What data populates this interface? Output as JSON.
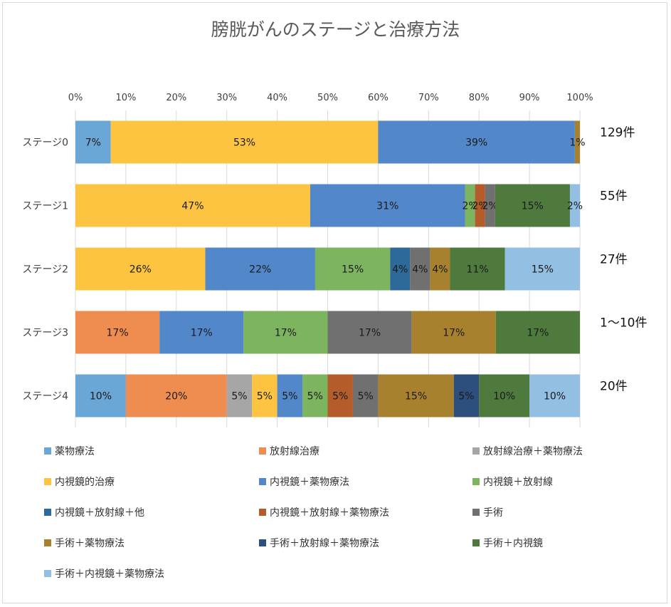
{
  "chart_data": {
    "type": "bar",
    "orientation": "horizontal",
    "stacked": "percent",
    "title": "膀胱がんのステージと治療方法",
    "xlim": [
      0,
      100
    ],
    "xticks": [
      "0%",
      "10%",
      "20%",
      "30%",
      "40%",
      "50%",
      "60%",
      "70%",
      "80%",
      "90%",
      "100%"
    ],
    "grid": true,
    "legend_position": "bottom",
    "categories": [
      "ステージ0",
      "ステージ1",
      "ステージ2",
      "ステージ3",
      "ステージ4"
    ],
    "counts": [
      "129件",
      "55件",
      "27件",
      "1〜10件",
      "20件"
    ],
    "series": [
      {
        "name": "薬物療法",
        "color": "#6aa6d6",
        "values": [
          7,
          0,
          0,
          0,
          10
        ]
      },
      {
        "name": "放射線治療",
        "color": "#ef8c4f",
        "values": [
          0,
          0,
          0,
          17,
          20
        ]
      },
      {
        "name": "放射線治療＋薬物療法",
        "color": "#a6a6a6",
        "values": [
          0,
          0,
          0,
          0,
          5
        ]
      },
      {
        "name": "内視鏡的治療",
        "color": "#fdc441",
        "values": [
          53,
          47,
          26,
          0,
          5
        ]
      },
      {
        "name": "内視鏡＋薬物療法",
        "color": "#5287c9",
        "values": [
          39,
          31,
          22,
          17,
          5
        ]
      },
      {
        "name": "内視鏡＋放射線",
        "color": "#7db460",
        "values": [
          0,
          2,
          15,
          17,
          5
        ]
      },
      {
        "name": "内視鏡＋放射線＋他",
        "color": "#2e6a99",
        "values": [
          0,
          0,
          4,
          0,
          0
        ]
      },
      {
        "name": "内視鏡＋放射線＋薬物療法",
        "color": "#b45d2a",
        "values": [
          0,
          2,
          0,
          0,
          5
        ]
      },
      {
        "name": "手術",
        "color": "#707070",
        "values": [
          0,
          2,
          4,
          17,
          5
        ]
      },
      {
        "name": "手術＋薬物療法",
        "color": "#a8812e",
        "values": [
          1,
          0,
          4,
          17,
          15
        ]
      },
      {
        "name": "手術＋放射線＋薬物療法",
        "color": "#2d4f7e",
        "values": [
          0,
          0,
          0,
          0,
          5
        ]
      },
      {
        "name": "手術＋内視鏡",
        "color": "#4e7a3d",
        "values": [
          0,
          15,
          11,
          17,
          10
        ]
      },
      {
        "name": "手術＋内視鏡＋薬物療法",
        "color": "#93bfe3",
        "values": [
          0,
          2,
          15,
          0,
          10
        ]
      }
    ]
  }
}
